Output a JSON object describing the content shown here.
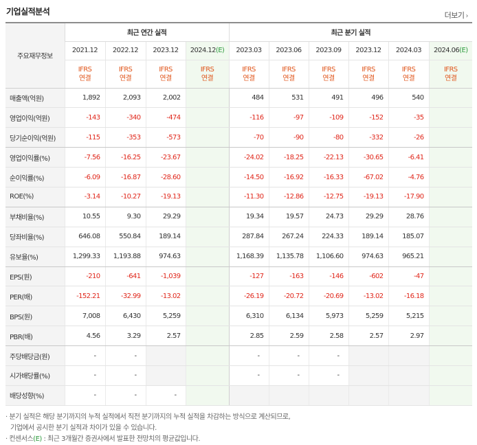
{
  "header": {
    "title": "기업실적분석",
    "more_label": "더보기"
  },
  "table": {
    "corner_label": "주요재무정보",
    "annual_group": "최근 연간 실적",
    "quarter_group": "최근 분기 실적",
    "annual_periods": [
      "2021.12",
      "2022.12",
      "2023.12",
      "2024.12"
    ],
    "quarter_periods": [
      "2023.03",
      "2023.06",
      "2023.09",
      "2023.12",
      "2024.03",
      "2024.06"
    ],
    "estimate_mark": "(E)",
    "ifrs_line1": "IFRS",
    "ifrs_line2": "연결",
    "rows": [
      {
        "label": "매출액(억원)",
        "annual": [
          "1,892",
          "2,093",
          "2,002",
          ""
        ],
        "quarter": [
          "484",
          "531",
          "491",
          "496",
          "540",
          ""
        ]
      },
      {
        "label": "영업이익(억원)",
        "annual": [
          "-143",
          "-340",
          "-474",
          ""
        ],
        "quarter": [
          "-116",
          "-97",
          "-109",
          "-152",
          "-35",
          ""
        ]
      },
      {
        "label": "당기순이익(억원)",
        "annual": [
          "-115",
          "-353",
          "-573",
          ""
        ],
        "quarter": [
          "-70",
          "-90",
          "-80",
          "-332",
          "-26",
          ""
        ]
      },
      {
        "label": "영업이익률(%)",
        "annual": [
          "-7.56",
          "-16.25",
          "-23.67",
          ""
        ],
        "quarter": [
          "-24.02",
          "-18.25",
          "-22.13",
          "-30.65",
          "-6.41",
          ""
        ]
      },
      {
        "label": "순이익률(%)",
        "annual": [
          "-6.09",
          "-16.87",
          "-28.60",
          ""
        ],
        "quarter": [
          "-14.50",
          "-16.92",
          "-16.33",
          "-67.02",
          "-4.76",
          ""
        ]
      },
      {
        "label": "ROE(%)",
        "annual": [
          "-3.14",
          "-10.27",
          "-19.13",
          ""
        ],
        "quarter": [
          "-11.30",
          "-12.86",
          "-12.75",
          "-19.13",
          "-17.90",
          ""
        ]
      },
      {
        "label": "부채비율(%)",
        "annual": [
          "10.55",
          "9.30",
          "29.29",
          ""
        ],
        "quarter": [
          "19.34",
          "19.57",
          "24.73",
          "29.29",
          "28.76",
          ""
        ]
      },
      {
        "label": "당좌비율(%)",
        "annual": [
          "646.08",
          "550.84",
          "189.14",
          ""
        ],
        "quarter": [
          "287.84",
          "267.24",
          "224.33",
          "189.14",
          "185.07",
          ""
        ]
      },
      {
        "label": "유보율(%)",
        "annual": [
          "1,299.33",
          "1,193.88",
          "974.63",
          ""
        ],
        "quarter": [
          "1,168.39",
          "1,135.78",
          "1,106.60",
          "974.63",
          "965.21",
          ""
        ]
      },
      {
        "label": "EPS(원)",
        "annual": [
          "-210",
          "-641",
          "-1,039",
          ""
        ],
        "quarter": [
          "-127",
          "-163",
          "-146",
          "-602",
          "-47",
          ""
        ]
      },
      {
        "label": "PER(배)",
        "annual": [
          "-152.21",
          "-32.99",
          "-13.02",
          ""
        ],
        "quarter": [
          "-26.19",
          "-20.72",
          "-20.69",
          "-13.02",
          "-16.18",
          ""
        ]
      },
      {
        "label": "BPS(원)",
        "annual": [
          "7,008",
          "6,430",
          "5,259",
          ""
        ],
        "quarter": [
          "6,310",
          "6,134",
          "5,973",
          "5,259",
          "5,215",
          ""
        ]
      },
      {
        "label": "PBR(배)",
        "annual": [
          "4.56",
          "3.29",
          "2.57",
          ""
        ],
        "quarter": [
          "2.85",
          "2.59",
          "2.58",
          "2.57",
          "2.97",
          ""
        ]
      },
      {
        "label": "주당배당금(원)",
        "annual": [
          "-",
          "-",
          "",
          ""
        ],
        "quarter": [
          "-",
          "-",
          "-",
          "",
          "",
          ""
        ]
      },
      {
        "label": "시가배당률(%)",
        "annual": [
          "-",
          "-",
          "",
          ""
        ],
        "quarter": [
          "-",
          "-",
          "-",
          "",
          "",
          ""
        ]
      },
      {
        "label": "배당성향(%)",
        "annual": [
          "-",
          "-",
          "-",
          ""
        ],
        "quarter": [
          "",
          "",
          "",
          "",
          "",
          ""
        ]
      }
    ]
  },
  "notes": {
    "line1": "분기 실적은 해당 분기까지의 누적 실적에서 직전 분기까지의 누적 실적을 차감하는 방식으로 계산되므로,",
    "line2": "기업에서 공시한 분기 실적과 차이가 있을 수 있습니다.",
    "line3_prefix": "컨센서스",
    "line3_suffix": " : 최근 3개월간 증권사에서 발표한 전망치의 평균값입니다."
  },
  "colors": {
    "negative": "#e0261a",
    "ifrs": "#e0561c",
    "estimate": "#2e9b3e",
    "estimate_bg": "#f1f9ef"
  }
}
